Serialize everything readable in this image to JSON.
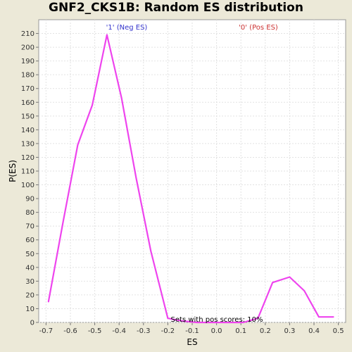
{
  "chart_data": {
    "type": "line",
    "title": "GNF2_CKS1B: Random ES distribution",
    "xlabel": "ES",
    "ylabel": "P(ES)",
    "xlim": [
      -0.73,
      0.53
    ],
    "ylim": [
      0,
      220
    ],
    "x_ticks": [
      -0.7,
      -0.6,
      -0.5,
      -0.4,
      -0.3,
      -0.2,
      -0.1,
      0.0,
      0.1,
      0.2,
      0.3,
      0.4,
      0.5
    ],
    "y_ticks": [
      0,
      10,
      20,
      30,
      40,
      50,
      60,
      70,
      80,
      90,
      100,
      110,
      120,
      130,
      140,
      150,
      160,
      170,
      180,
      190,
      200,
      210
    ],
    "grid": true,
    "series": [
      {
        "color": "#ee44ee",
        "x": [
          -0.69,
          -0.63,
          -0.57,
          -0.51,
          -0.45,
          -0.39,
          -0.33,
          -0.27,
          -0.2,
          -0.14,
          -0.08,
          -0.02,
          0.05,
          0.11,
          0.17,
          0.23,
          0.3,
          0.36,
          0.42,
          0.48
        ],
        "y": [
          15,
          73,
          129,
          158,
          209,
          163,
          105,
          52,
          3,
          1,
          0,
          0,
          0,
          0,
          3,
          29,
          33,
          23,
          4,
          4
        ]
      }
    ],
    "annotations": {
      "neg": {
        "text": "'1' (Neg ES)",
        "color": "#3333cc"
      },
      "pos": {
        "text": "'0' (Pos ES)",
        "color": "#cc3333"
      },
      "note": {
        "text": "Sets with pos scores: 10%",
        "color": "#000000"
      }
    }
  }
}
